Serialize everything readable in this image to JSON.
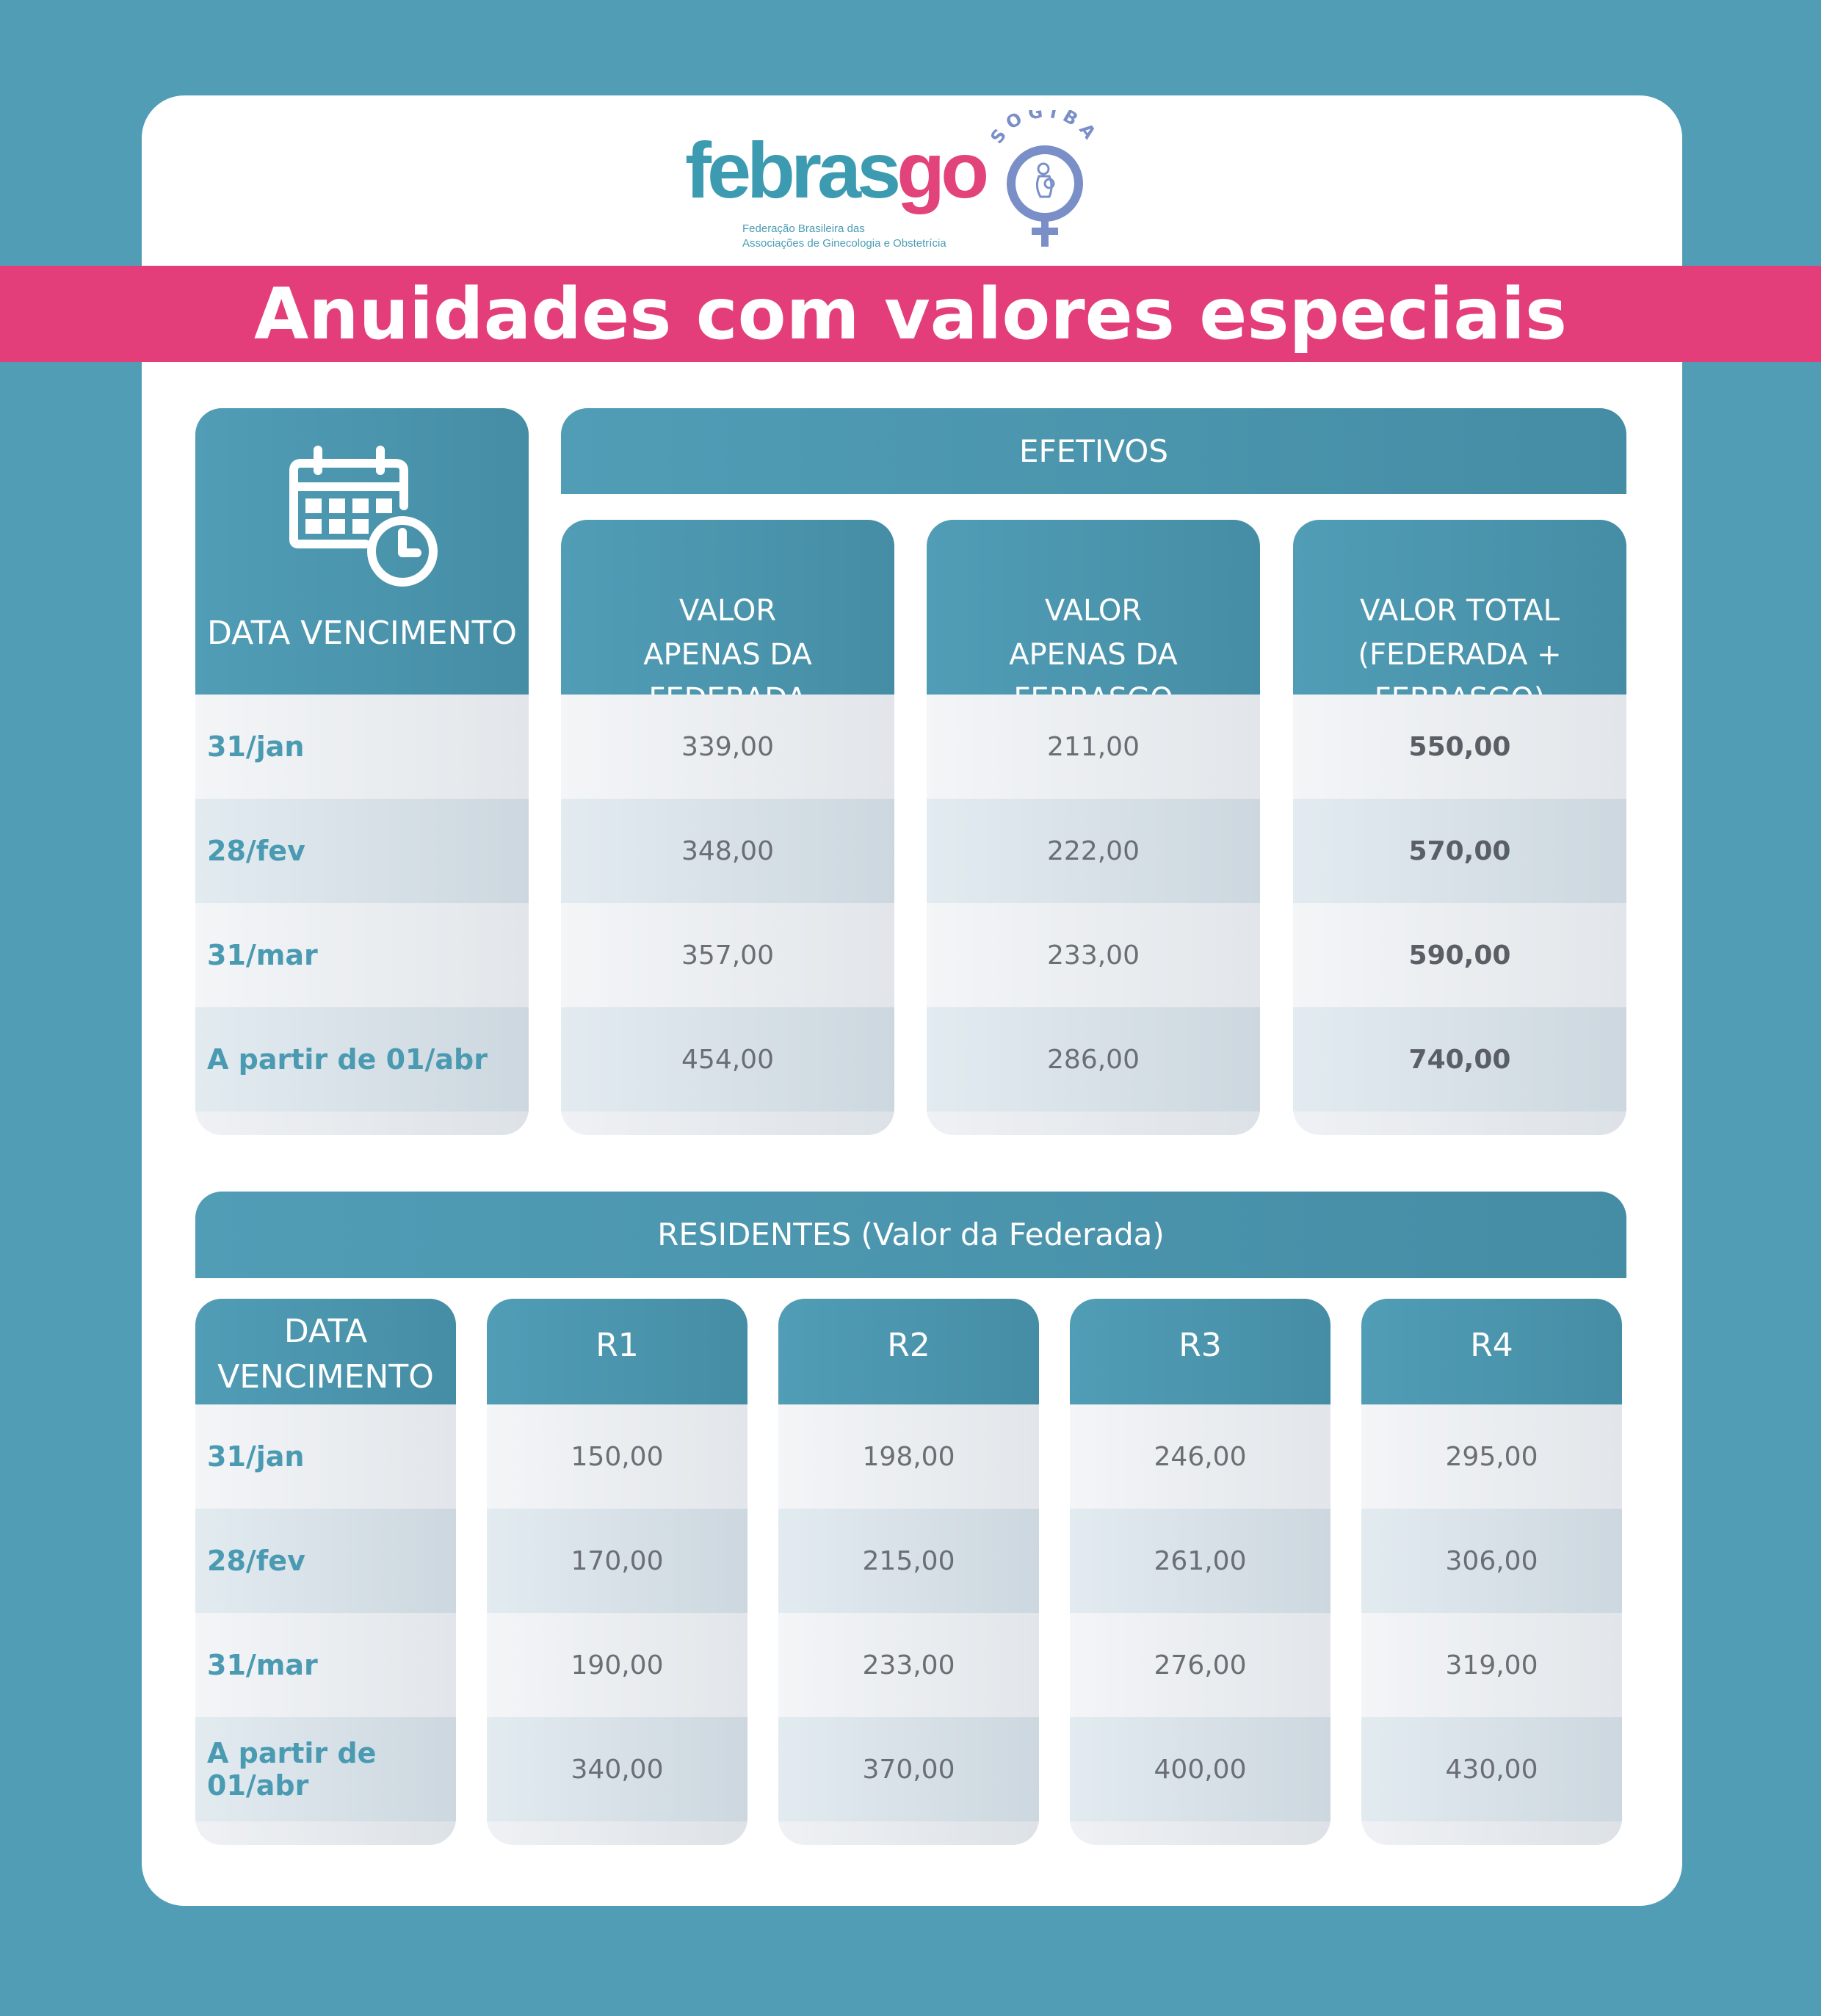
{
  "logos": {
    "febrasgo_word_a": "febras",
    "febrasgo_word_b": "go",
    "febrasgo_sub_1": "Federação Brasileira das",
    "febrasgo_sub_2": "Associações de Ginecologia e Obstetrícia",
    "sogiba": "SOGIBA"
  },
  "title": "Anuidades com valores especiais",
  "efetivos": {
    "section_title": "EFETIVOS",
    "date_header": "DATA VENCIMENTO",
    "columns": [
      [
        "VALOR",
        "APENAS DA",
        "FEDERADA"
      ],
      [
        "VALOR",
        "APENAS DA",
        "FEBRASGO"
      ],
      [
        "VALOR TOTAL",
        "(FEDERADA +",
        "FEBRASGO)"
      ]
    ],
    "dates": [
      "31/jan",
      "28/fev",
      "31/mar",
      "A partir de 01/abr"
    ],
    "federada": [
      "339,00",
      "348,00",
      "357,00",
      "454,00"
    ],
    "febrasgo": [
      "211,00",
      "222,00",
      "233,00",
      "286,00"
    ],
    "total": [
      "550,00",
      "570,00",
      "590,00",
      "740,00"
    ]
  },
  "residentes": {
    "section_title": "RESIDENTES (Valor da Federada)",
    "date_header": [
      "DATA",
      "VENCIMENTO"
    ],
    "dates": [
      "31/jan",
      "28/fev",
      "31/mar",
      "A partir de 01/abr"
    ],
    "columns": [
      {
        "label": "R1",
        "values": [
          "150,00",
          "170,00",
          "190,00",
          "340,00"
        ]
      },
      {
        "label": "R2",
        "values": [
          "198,00",
          "215,00",
          "233,00",
          "370,00"
        ]
      },
      {
        "label": "R3",
        "values": [
          "246,00",
          "261,00",
          "276,00",
          "400,00"
        ]
      },
      {
        "label": "R4",
        "values": [
          "295,00",
          "306,00",
          "319,00",
          "430,00"
        ]
      }
    ]
  },
  "colors": {
    "background": "#519db6",
    "banner": "#e33d7a",
    "header": "#4a93ac",
    "date_text": "#4a9ab2"
  }
}
